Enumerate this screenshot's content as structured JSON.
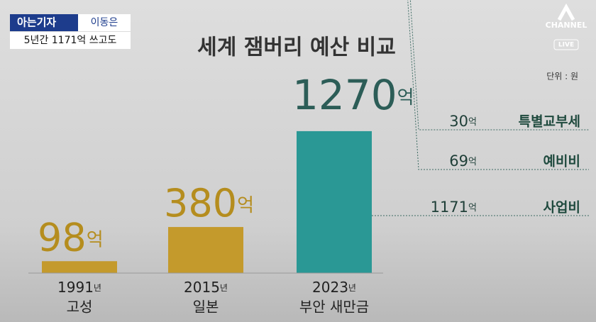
{
  "broadcast": {
    "segment": "아는기자",
    "reporter": "이동은",
    "headline": "5년간 1171억 쓰고도",
    "logo": "CHANNEL",
    "live": "LIVE"
  },
  "chart_data": {
    "type": "bar",
    "title": "세계 잼버리 예산 비교",
    "unit_note": "단위 : 원",
    "categories": [
      "1991년",
      "2015년",
      "2023년"
    ],
    "category_sublabels": [
      "고성",
      "일본",
      "부안 새만금"
    ],
    "values": [
      98,
      380,
      1270
    ],
    "value_labels": [
      "98억",
      "380억",
      "1270억"
    ],
    "colors": [
      "#c49a2c",
      "#c49a2c",
      "#2a9895"
    ],
    "label_colors": [
      "#b58d1e",
      "#b58d1e",
      "#2c5d57"
    ],
    "breakdown": [
      {
        "name": "사업비",
        "value": 1171,
        "value_label": "1171억",
        "color": "#2a9895"
      },
      {
        "name": "예비비",
        "value": 69,
        "value_label": "69억",
        "color": "#1f6e64"
      },
      {
        "name": "특별교부세",
        "value": 30,
        "value_label": "30억",
        "color": "#1b5049"
      }
    ]
  }
}
